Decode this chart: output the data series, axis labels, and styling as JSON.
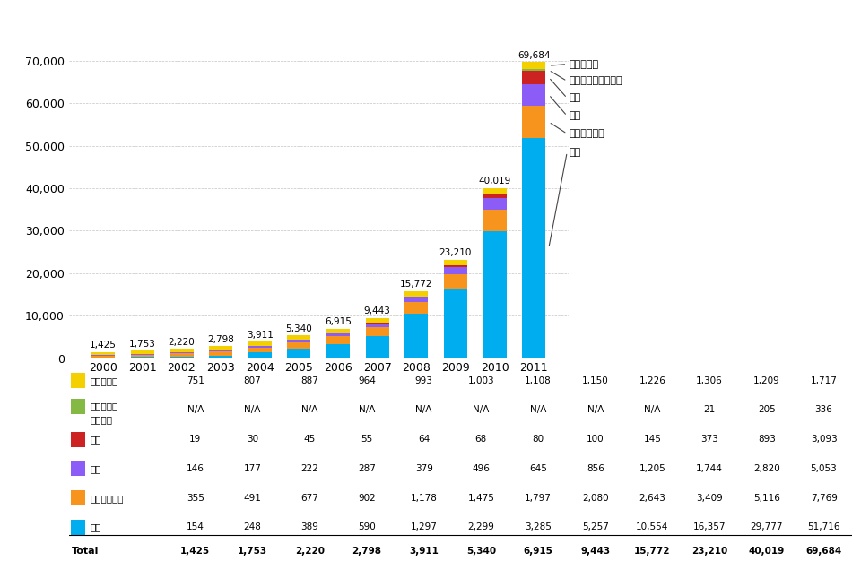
{
  "years": [
    "2000",
    "2001",
    "2002",
    "2003",
    "2004",
    "2005",
    "2006",
    "2007",
    "2008",
    "2009",
    "2010",
    "2011"
  ],
  "totals": [
    1425,
    1753,
    2220,
    2798,
    3911,
    5340,
    6915,
    9443,
    15772,
    23210,
    40019,
    69684
  ],
  "series": {
    "欧州": [
      154,
      248,
      389,
      590,
      1297,
      2299,
      3285,
      5257,
      10554,
      16357,
      29777,
      51716
    ],
    "アジア太平洋": [
      355,
      491,
      677,
      902,
      1178,
      1475,
      1797,
      2080,
      2643,
      3409,
      5116,
      7769
    ],
    "米国": [
      146,
      177,
      222,
      287,
      379,
      496,
      645,
      856,
      1205,
      1744,
      2820,
      5053
    ],
    "中国": [
      19,
      30,
      45,
      55,
      64,
      68,
      80,
      100,
      145,
      373,
      893,
      3093
    ],
    "中東およびアフリカ": [
      0,
      0,
      0,
      0,
      0,
      0,
      0,
      0,
      0,
      21,
      205,
      336
    ],
    "その他の国": [
      751,
      807,
      887,
      964,
      993,
      1003,
      1108,
      1150,
      1226,
      1306,
      1209,
      1717
    ]
  },
  "colors": {
    "欧州": "#00AEEF",
    "アジア太平洋": "#F7941D",
    "米国": "#8B5CF6",
    "中国": "#CC2222",
    "中東およびアフリカ": "#84B944",
    "その他の国": "#F5D000"
  },
  "ylim": [
    0,
    76000
  ],
  "yticks": [
    0,
    10000,
    20000,
    30000,
    40000,
    50000,
    60000,
    70000
  ],
  "ytick_labels": [
    "0",
    "10,000",
    "20,000",
    "30,000",
    "40,000",
    "50,000",
    "60,000",
    "70,000"
  ],
  "table_rows": {
    "その他の国": [
      "751",
      "807",
      "887",
      "964",
      "993",
      "1,003",
      "1,108",
      "1,150",
      "1,226",
      "1,306",
      "1,209",
      "1,717"
    ],
    "中東およびアフリカ": [
      "N/A",
      "N/A",
      "N/A",
      "N/A",
      "N/A",
      "N/A",
      "N/A",
      "N/A",
      "N/A",
      "21",
      "205",
      "336"
    ],
    "中国": [
      "19",
      "30",
      "45",
      "55",
      "64",
      "68",
      "80",
      "100",
      "145",
      "373",
      "893",
      "3,093"
    ],
    "米国": [
      "146",
      "177",
      "222",
      "287",
      "379",
      "496",
      "645",
      "856",
      "1,205",
      "1,744",
      "2,820",
      "5,053"
    ],
    "アジア太平洋": [
      "355",
      "491",
      "677",
      "902",
      "1,178",
      "1,475",
      "1,797",
      "2,080",
      "2,643",
      "3,409",
      "5,116",
      "7,769"
    ],
    "欧州": [
      "154",
      "248",
      "389",
      "590",
      "1,297",
      "2,299",
      "3,285",
      "5,257",
      "10,554",
      "16,357",
      "29,777",
      "51,716"
    ]
  },
  "total_row": [
    "1,425",
    "1,753",
    "2,220",
    "2,798",
    "3,911",
    "5,340",
    "6,915",
    "9,443",
    "15,772",
    "23,210",
    "40,019",
    "69,684"
  ],
  "ann_y_positions": {
    "その他の国": 69200,
    "中東およびアフリカ": 65200,
    "中国": 61200,
    "米国": 57000,
    "アジア太平洋": 52800,
    "欧州": 48500
  }
}
